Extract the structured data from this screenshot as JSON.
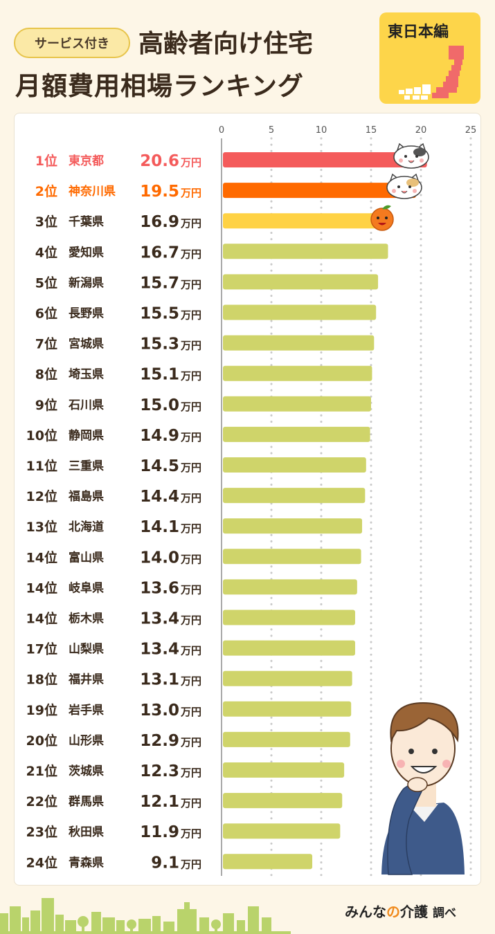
{
  "header": {
    "tag": "サービス付き",
    "title_line1": "高齢者向け住宅",
    "title_line2": "月額費用相場ランキング",
    "region_badge": "東日本編"
  },
  "colors": {
    "rank1": "#F45B5B",
    "rank2": "#FF6A00",
    "rank3": "#FFD244",
    "default": "#CFD46A",
    "text_dark": "#3A2A1C",
    "background": "#FDF6E7"
  },
  "icons": [
    "cat-face-icon",
    "tabby-cat-face-icon",
    "mandarin-orange-icon",
    "thinking-man-illustration",
    "city-skyline-icon",
    "japan-map-icon"
  ],
  "footer": {
    "brand_prefix": "みんな",
    "brand_no": "の",
    "brand_suffix": "介護",
    "brand_note": "調べ"
  },
  "chart_data": {
    "type": "bar",
    "orientation": "horizontal",
    "unit": "万円",
    "xlim": [
      0,
      25
    ],
    "xticks": [
      0,
      5,
      10,
      15,
      20,
      25
    ],
    "grid": "vertical dotted",
    "rows": [
      {
        "rank": "1位",
        "name": "東京都",
        "value": 20.6,
        "label": "20.6"
      },
      {
        "rank": "2位",
        "name": "神奈川県",
        "value": 19.5,
        "label": "19.5"
      },
      {
        "rank": "3位",
        "name": "千葉県",
        "value": 16.9,
        "label": "16.9"
      },
      {
        "rank": "4位",
        "name": "愛知県",
        "value": 16.7,
        "label": "16.7"
      },
      {
        "rank": "5位",
        "name": "新潟県",
        "value": 15.7,
        "label": "15.7"
      },
      {
        "rank": "6位",
        "name": "長野県",
        "value": 15.5,
        "label": "15.5"
      },
      {
        "rank": "7位",
        "name": "宮城県",
        "value": 15.3,
        "label": "15.3"
      },
      {
        "rank": "8位",
        "name": "埼玉県",
        "value": 15.1,
        "label": "15.1"
      },
      {
        "rank": "9位",
        "name": "石川県",
        "value": 15.0,
        "label": "15.0"
      },
      {
        "rank": "10位",
        "name": "静岡県",
        "value": 14.9,
        "label": "14.9"
      },
      {
        "rank": "11位",
        "name": "三重県",
        "value": 14.5,
        "label": "14.5"
      },
      {
        "rank": "12位",
        "name": "福島県",
        "value": 14.4,
        "label": "14.4"
      },
      {
        "rank": "13位",
        "name": "北海道",
        "value": 14.1,
        "label": "14.1"
      },
      {
        "rank": "14位",
        "name": "富山県",
        "value": 14.0,
        "label": "14.0"
      },
      {
        "rank": "14位",
        "name": "岐阜県",
        "value": 13.6,
        "label": "13.6"
      },
      {
        "rank": "14位",
        "name": "栃木県",
        "value": 13.4,
        "label": "13.4"
      },
      {
        "rank": "17位",
        "name": "山梨県",
        "value": 13.4,
        "label": "13.4"
      },
      {
        "rank": "18位",
        "name": "福井県",
        "value": 13.1,
        "label": "13.1"
      },
      {
        "rank": "19位",
        "name": "岩手県",
        "value": 13.0,
        "label": "13.0"
      },
      {
        "rank": "20位",
        "name": "山形県",
        "value": 12.9,
        "label": "12.9"
      },
      {
        "rank": "21位",
        "name": "茨城県",
        "value": 12.3,
        "label": "12.3"
      },
      {
        "rank": "22位",
        "name": "群馬県",
        "value": 12.1,
        "label": "12.1"
      },
      {
        "rank": "23位",
        "name": "秋田県",
        "value": 11.9,
        "label": "11.9"
      },
      {
        "rank": "24位",
        "name": "青森県",
        "value": 9.1,
        "label": "9.1"
      }
    ]
  }
}
